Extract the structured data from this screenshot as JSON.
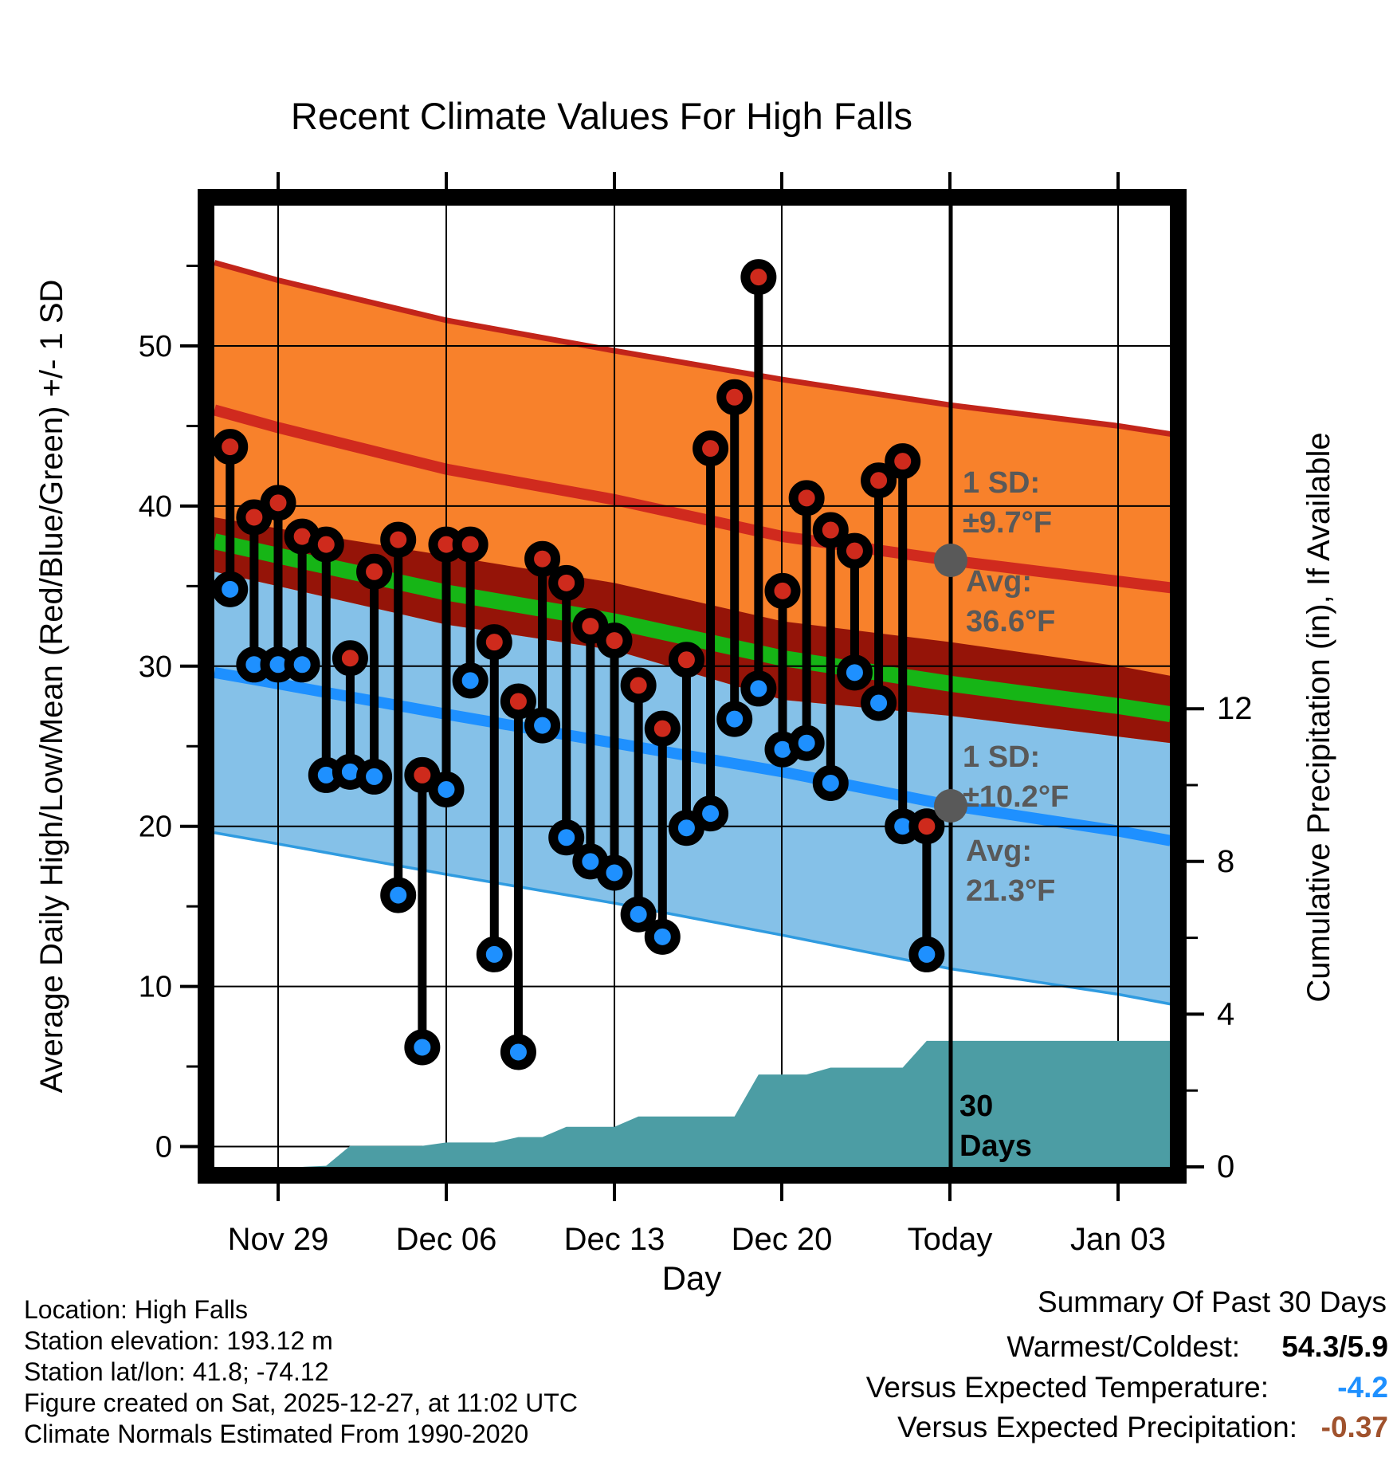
{
  "title": "Recent Climate Values For High Falls",
  "axes": {
    "left_label": "Average Daily High/Low/Mean (Red/Blue/Green) +/- 1 SD",
    "right_label": "Cumulative Precipitation (in), If Available",
    "x_label": "Day",
    "x_tick_labels": [
      "Nov 29",
      "Dec 06",
      "Dec 13",
      "Dec 20",
      "Today",
      "Jan 03"
    ],
    "y_left_tick_labels": [
      "50",
      "40",
      "30",
      "20",
      "10",
      "0"
    ],
    "y_left_tick_values": [
      50,
      40,
      30,
      20,
      10,
      0
    ],
    "y_right_tick_labels": [
      "12",
      "8",
      "4",
      "0"
    ],
    "y_right_tick_values": [
      12,
      8,
      4,
      0
    ]
  },
  "chart_data": {
    "type": "combo",
    "subtype": "daily-high-low-stems + climate-normal-bands + cumulative-precip-area",
    "daily": {
      "dates": [
        "Nov 27",
        "Nov 28",
        "Nov 29",
        "Nov 30",
        "Dec 01",
        "Dec 02",
        "Dec 03",
        "Dec 04",
        "Dec 05",
        "Dec 06",
        "Dec 07",
        "Dec 08",
        "Dec 09",
        "Dec 10",
        "Dec 11",
        "Dec 12",
        "Dec 13",
        "Dec 14",
        "Dec 15",
        "Dec 16",
        "Dec 17",
        "Dec 18",
        "Dec 19",
        "Dec 20",
        "Dec 21",
        "Dec 22",
        "Dec 23",
        "Dec 24",
        "Dec 25",
        "Dec 26"
      ],
      "highs": [
        43.7,
        39.3,
        40.2,
        38.1,
        37.6,
        30.5,
        35.9,
        37.9,
        23.2,
        37.6,
        37.6,
        31.5,
        27.8,
        36.7,
        35.2,
        32.5,
        31.6,
        28.8,
        26.1,
        30.4,
        43.6,
        46.8,
        54.3,
        34.7,
        40.5,
        38.5,
        37.2,
        41.6,
        42.8,
        20.0
      ],
      "lows": [
        34.8,
        30.1,
        30.1,
        30.1,
        23.2,
        23.4,
        23.1,
        15.7,
        6.2,
        22.3,
        29.1,
        12.0,
        5.9,
        26.3,
        19.3,
        17.8,
        17.1,
        14.5,
        13.1,
        19.9,
        20.8,
        26.7,
        28.6,
        24.8,
        25.2,
        22.7,
        29.6,
        27.7,
        20.0,
        12.0
      ]
    },
    "normals": {
      "comment_units": "deg F, anchors at day offsets from Nov 27",
      "anchor_days": [
        -0.65,
        2,
        9,
        16,
        23,
        30,
        37,
        39.15
      ],
      "high_plus_sd": [
        55.2,
        54.1,
        51.6,
        49.7,
        47.9,
        46.3,
        45.0,
        44.5
      ],
      "avg_high": [
        46.0,
        44.9,
        42.3,
        40.4,
        38.1,
        36.6,
        35.3,
        34.9
      ],
      "high_minus_sd": [
        35.9,
        35.0,
        32.6,
        31.0,
        27.9,
        26.9,
        25.6,
        25.2
      ],
      "mean": [
        37.8,
        36.9,
        34.6,
        32.8,
        30.5,
        28.9,
        27.5,
        27.0
      ],
      "low_plus_sd": [
        39.3,
        38.6,
        36.9,
        35.2,
        32.8,
        31.5,
        30.0,
        29.4
      ],
      "avg_low": [
        29.6,
        28.9,
        27.0,
        25.2,
        23.4,
        21.3,
        19.7,
        19.1
      ],
      "low_minus_sd": [
        19.6,
        18.9,
        17.0,
        15.2,
        13.2,
        11.1,
        9.5,
        8.9
      ]
    },
    "precip_cumulative": {
      "values_by_day": [
        0,
        0,
        0,
        0,
        0.03,
        0.55,
        0.55,
        0.55,
        0.55,
        0.64,
        0.64,
        0.64,
        0.78,
        0.78,
        1.05,
        1.05,
        1.05,
        1.32,
        1.32,
        1.32,
        1.32,
        1.32,
        2.42,
        2.42,
        2.42,
        2.6,
        2.6,
        2.6,
        2.6,
        3.3
      ],
      "final_total_in": 3.3
    },
    "annotations": {
      "high": {
        "sd_label": "1 SD:",
        "sd_value": "±9.7°F",
        "avg_label": "Avg:",
        "avg_value": "36.6°F",
        "avg_numeric": 36.6
      },
      "low": {
        "sd_label": "1 SD:",
        "sd_value": "±10.2°F",
        "avg_label": "Avg:",
        "avg_value": "21.3°F",
        "avg_numeric": 21.3
      },
      "today_marker_line1": "30",
      "today_marker_line2": "Days"
    },
    "summary": {
      "header": "Summary Of Past 30 Days",
      "rows": [
        {
          "label": "Warmest/Coldest:",
          "value": "54.3/5.9",
          "color": "#000000"
        },
        {
          "label": "Versus Expected Temperature:",
          "value": "-4.2",
          "color": "#1E90FF"
        },
        {
          "label": "Versus Expected Precipitation:",
          "value": "-0.37",
          "color": "#A0522D"
        }
      ]
    },
    "footer": [
      "Location: High Falls",
      "Station elevation: 193.12 m",
      "Station lat/lon: 41.8; -74.12",
      "Figure created on Sat, 2025-12-27, at 11:02 UTC",
      "Climate Normals Estimated From 1990-2020"
    ],
    "ylim_left": [
      0,
      50
    ],
    "ylim_right": [
      0,
      12
    ],
    "grid": true
  },
  "colors": {
    "orange_band": "#F8812B",
    "orange_top_edge": "#C2251A",
    "avg_high_line": "#D02A1E",
    "maroon_overlap_band": "#951408",
    "mean_line": "#16B516",
    "light_blue_band": "#85C1E8",
    "blue_band_edge": "#2F9BE0",
    "avg_low_line": "#1E90FF",
    "teal_precip": "#4C9DA4",
    "red_dot": "#CE2A1C",
    "blue_dot": "#1E90FF",
    "gray_annotation": "#595959",
    "frame": "#000000"
  }
}
